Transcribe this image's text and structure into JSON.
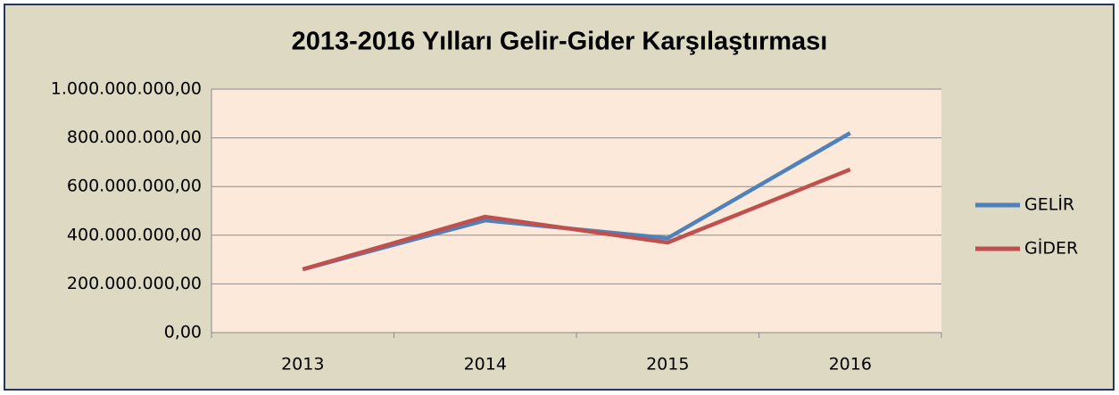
{
  "chart_data": {
    "type": "line",
    "title": "2013-2016 Yılları Gelir-Gider Karşılaştırması",
    "categories": [
      "2013",
      "2014",
      "2015",
      "2016"
    ],
    "series": [
      {
        "name": "GELİR",
        "color": "#4f81bd",
        "values": [
          260000000,
          461000000,
          388000000,
          820000000
        ]
      },
      {
        "name": "GİDER",
        "color": "#c0504d",
        "values": [
          260000000,
          476000000,
          370000000,
          670000000
        ]
      }
    ],
    "ylim": [
      0,
      1000000000
    ],
    "yticks": [
      {
        "value": 0,
        "label": "0,00"
      },
      {
        "value": 200000000,
        "label": "200.000.000,00"
      },
      {
        "value": 400000000,
        "label": "400.000.000,00"
      },
      {
        "value": 600000000,
        "label": "600.000.000,00"
      },
      {
        "value": 800000000,
        "label": "800.000.000,00"
      },
      {
        "value": 1000000000,
        "label": "1.000.000.000,00"
      }
    ],
    "grid": true,
    "legend": "right"
  }
}
